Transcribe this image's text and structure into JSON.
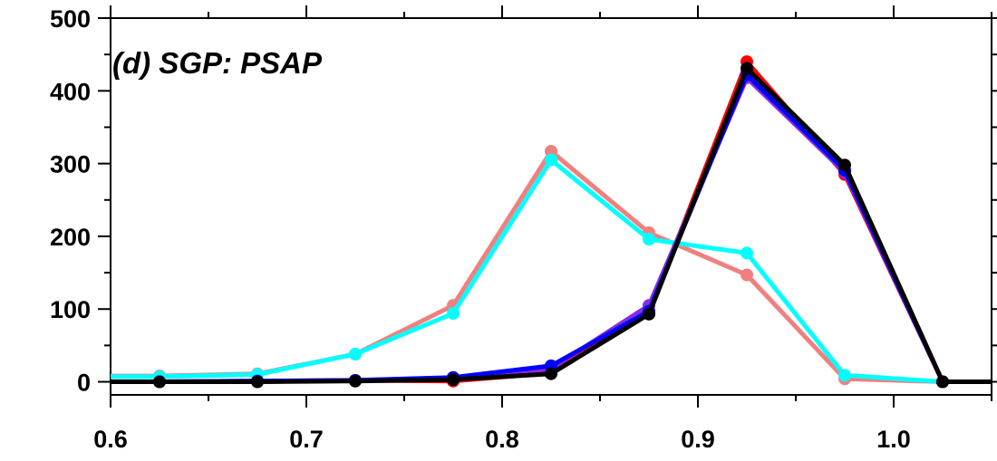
{
  "chart_data": {
    "type": "line",
    "title": "(d) SGP: PSAP",
    "xlabel": "",
    "ylabel": "",
    "xlim": [
      0.6,
      1.05
    ],
    "ylim": [
      -18,
      500
    ],
    "x_ticks": [
      0.6,
      0.7,
      0.8,
      0.9,
      1.0
    ],
    "x_tick_labels": [
      "0.6",
      "0.7",
      "0.8",
      "0.9",
      "1.0"
    ],
    "y_ticks": [
      0,
      100,
      200,
      300,
      400,
      500
    ],
    "y_tick_labels": [
      "0",
      "100",
      "200",
      "300",
      "400",
      "500"
    ],
    "grid": false,
    "legend": "none",
    "x": [
      0.625,
      0.675,
      0.725,
      0.775,
      0.825,
      0.875,
      0.925,
      0.975,
      1.025
    ],
    "series": [
      {
        "color": "#ff0000",
        "values": [
          0,
          0,
          2,
          1,
          12,
          95,
          440,
          285,
          0
        ]
      },
      {
        "color": "#f08080",
        "values": [
          8,
          11,
          38,
          105,
          317,
          205,
          147,
          4,
          0
        ]
      },
      {
        "color": "#00ffff",
        "values": [
          7,
          10,
          38,
          94,
          305,
          196,
          177,
          9,
          0
        ]
      },
      {
        "color": "#8a2be2",
        "values": [
          0,
          1,
          2,
          5,
          18,
          105,
          418,
          288,
          0
        ]
      },
      {
        "color": "#0000ff",
        "values": [
          0,
          1,
          2,
          6,
          22,
          97,
          422,
          291,
          0
        ]
      },
      {
        "color": "#000000",
        "values": [
          0,
          0,
          1,
          3,
          11,
          93,
          431,
          298,
          0
        ]
      }
    ]
  }
}
